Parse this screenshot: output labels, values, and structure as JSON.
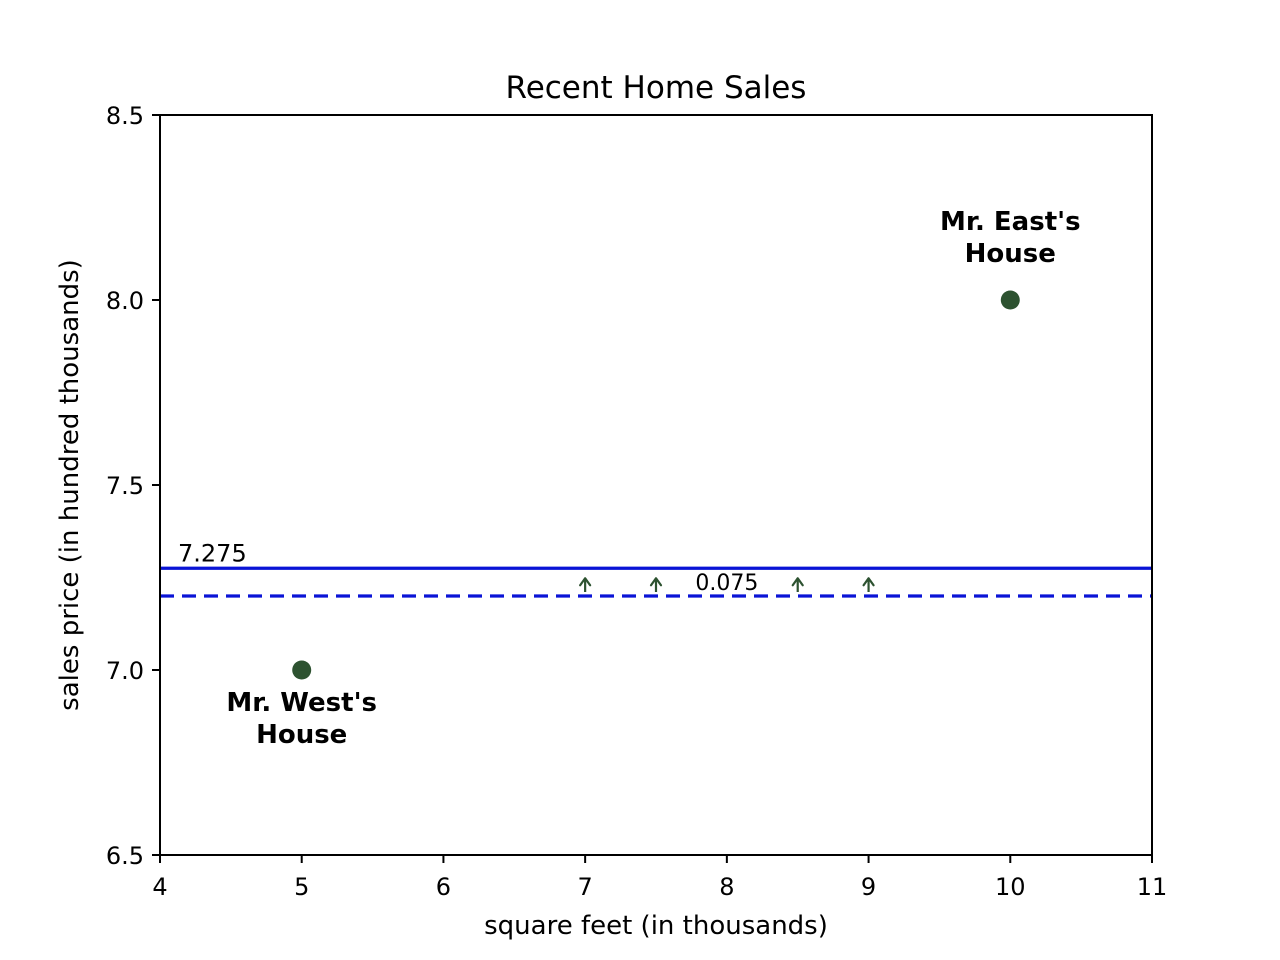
{
  "chart_data": {
    "type": "scatter",
    "title": "Recent Home Sales",
    "xlabel": "square feet (in thousands)",
    "ylabel": "sales price (in hundred thousands)",
    "xlim": [
      4,
      11
    ],
    "ylim": [
      6.5,
      8.5
    ],
    "xticks": [
      4,
      5,
      6,
      7,
      8,
      9,
      10,
      11
    ],
    "xtick_labels": [
      "4",
      "5",
      "6",
      "7",
      "8",
      "9",
      "10",
      "11"
    ],
    "yticks": [
      6.5,
      7.0,
      7.5,
      8.0,
      8.5
    ],
    "ytick_labels": [
      "6.5",
      "7.0",
      "7.5",
      "8.0",
      "8.5"
    ],
    "grid": false,
    "points": [
      {
        "x": 5,
        "y": 7.0,
        "label_lines": [
          "Mr. West's",
          "House"
        ],
        "label_position": "below"
      },
      {
        "x": 10,
        "y": 8.0,
        "label_lines": [
          "Mr. East's",
          "House"
        ],
        "label_position": "above"
      }
    ],
    "point_color": "#2d5230",
    "hlines": [
      {
        "y": 7.275,
        "style": "solid",
        "color": "#0a14d6",
        "label": "7.275"
      },
      {
        "y": 7.2,
        "style": "dashed",
        "color": "#0a14d6"
      }
    ],
    "difference": {
      "from": 7.2,
      "to": 7.275,
      "label": "0.075",
      "arrow_x": [
        7,
        7.5,
        8.5,
        9
      ],
      "label_x": 8,
      "color": "#2d5230"
    }
  }
}
